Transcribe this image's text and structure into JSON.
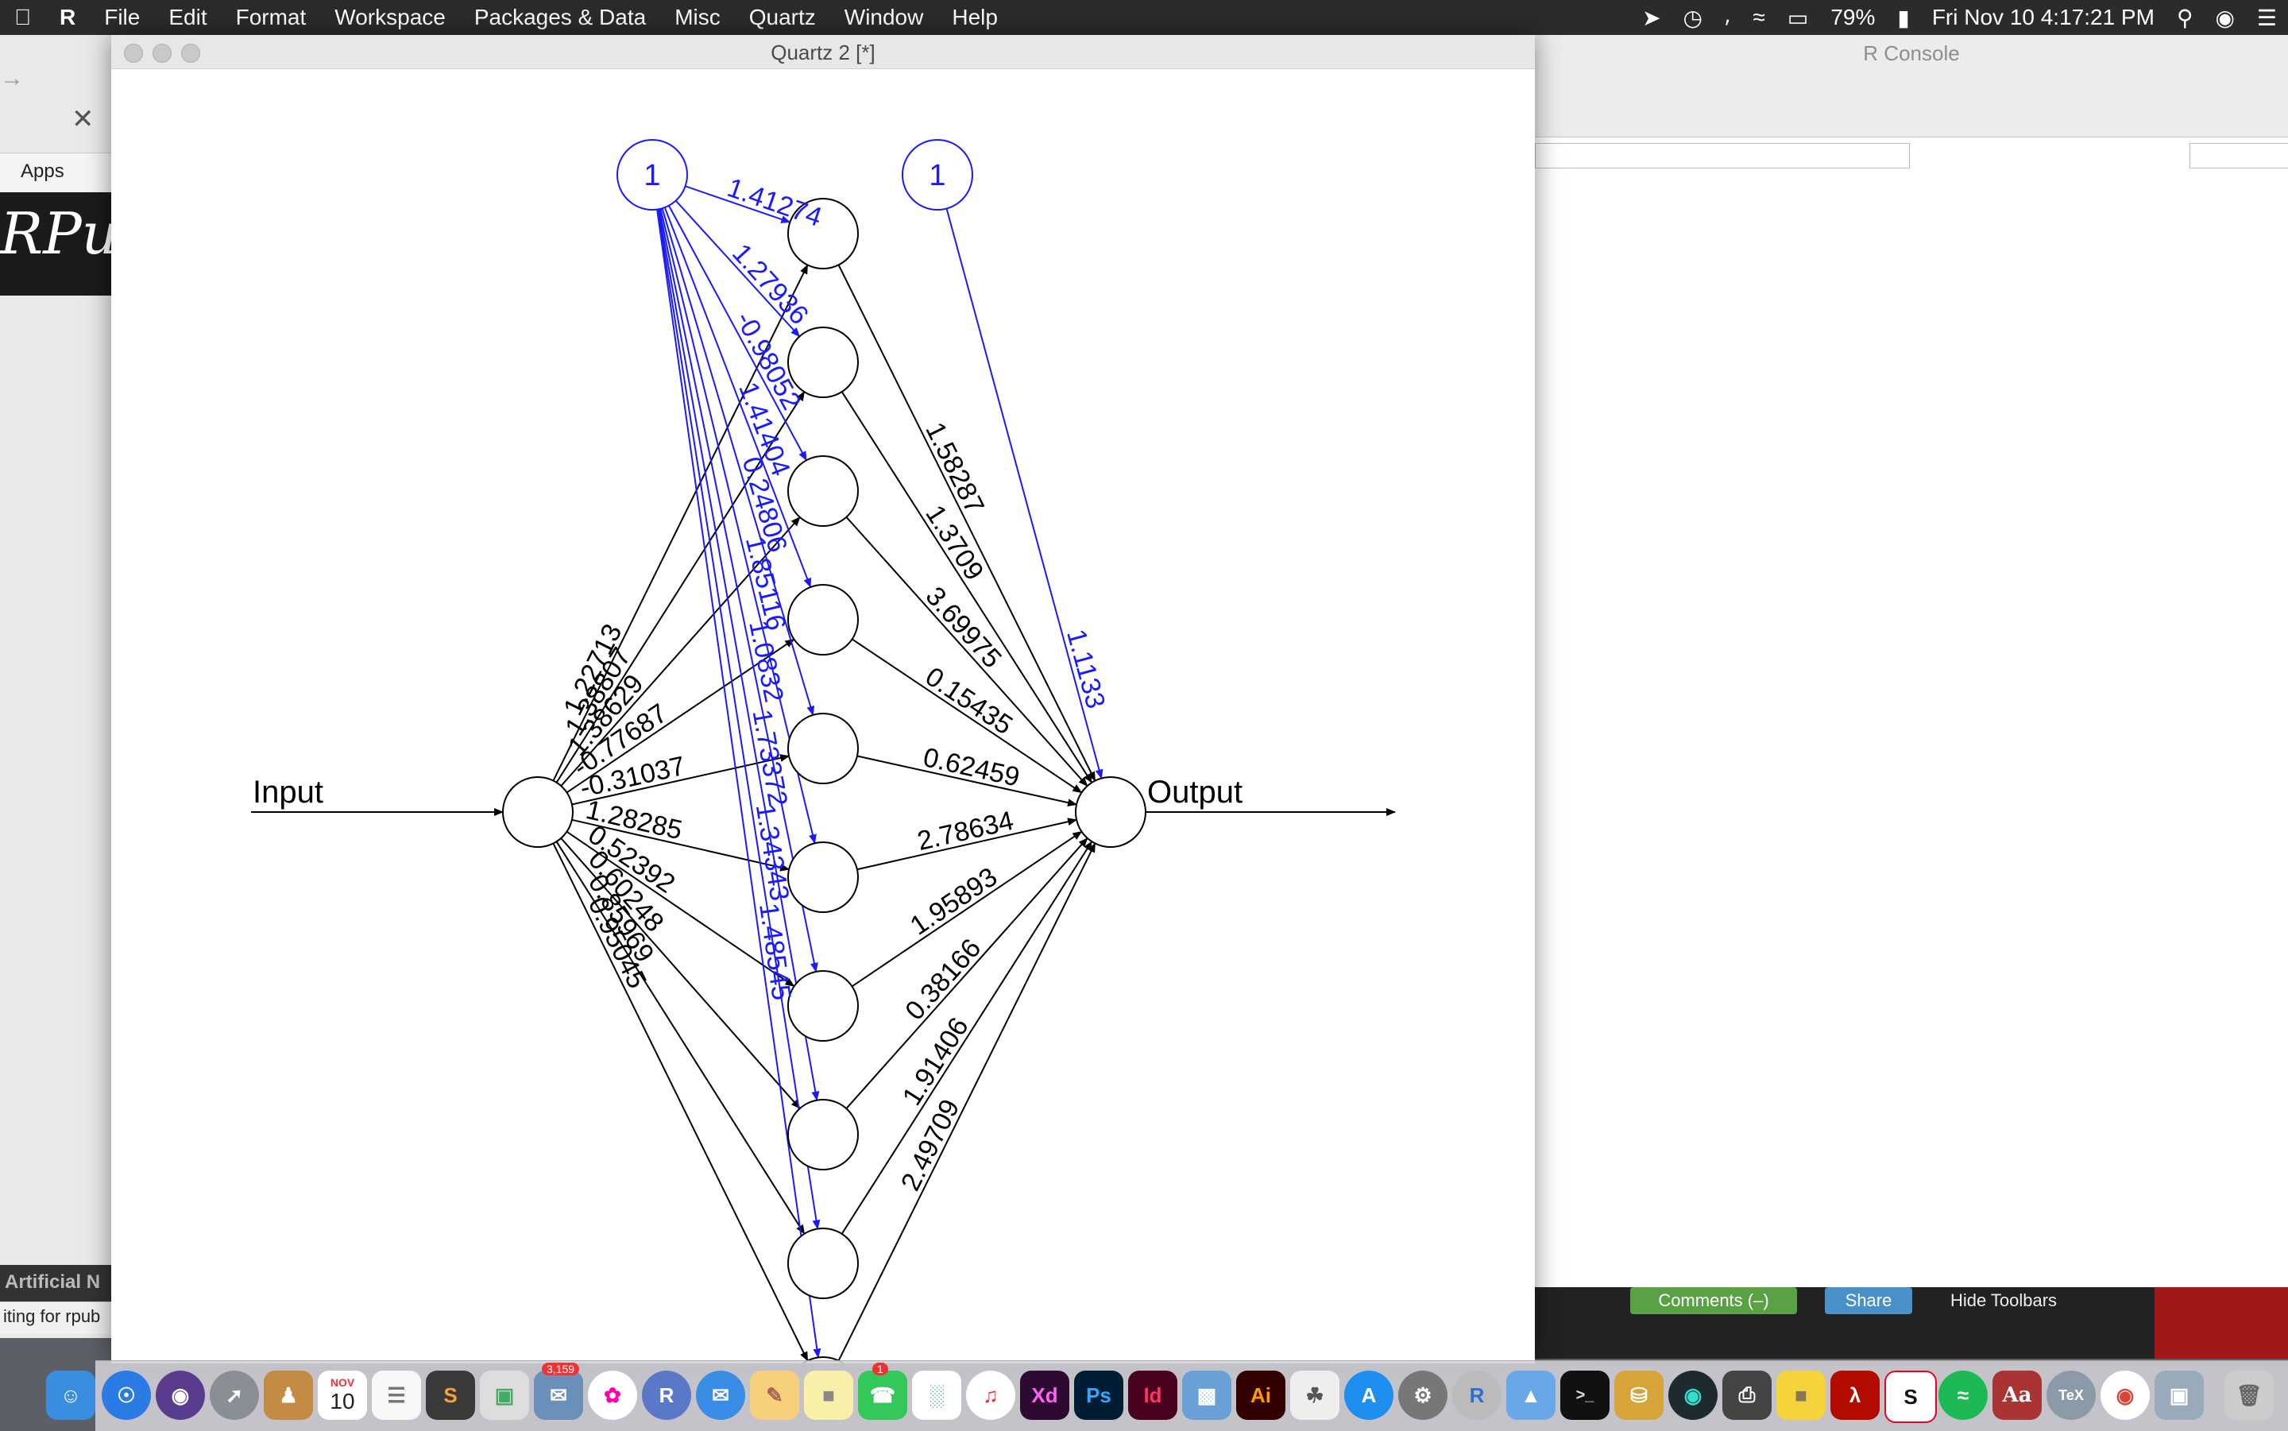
{
  "menubar": {
    "app_name": "R",
    "items": [
      "File",
      "Edit",
      "Format",
      "Workspace",
      "Packages & Data",
      "Misc",
      "Quartz",
      "Window",
      "Help"
    ],
    "battery": "79%",
    "clock": "Fri Nov 10  4:17:21 PM"
  },
  "browser": {
    "apps_label": "Apps",
    "rpubs_logo": "RPub",
    "tab_text": "Artificial N",
    "status_text": "iting for rpub"
  },
  "rconsole": {
    "title": "R Console",
    "buttons": [
      "Comments (–)",
      "Share",
      "Hide Toolbars"
    ]
  },
  "quartz": {
    "title": "Quartz 2 [*]"
  },
  "network": {
    "input_label": "Input",
    "output_label": "Output",
    "bias_labels": [
      "1",
      "1"
    ],
    "input_weights": [
      "1.22713",
      "1.38807",
      "1.38629",
      "-0.77687",
      "-0.31037",
      "1.28285",
      "0.52392",
      "0.60248",
      "0.85969",
      "0.95045"
    ],
    "bias_hidden_weights": [
      "1.41274",
      "1.27936",
      "-0.98052",
      "1.41404",
      "0.24806",
      "1.85116",
      "1.0832",
      "1.73372",
      "1.34343",
      "1.48545"
    ],
    "hidden_output_weights": [
      "1.58287",
      "1.3709",
      "3.69975",
      "0.15435",
      "0.62459",
      "2.78634",
      "1.95893",
      "0.38166",
      "1.91406",
      "2.49709"
    ],
    "bias_output_weight": "1.1133",
    "colors": {
      "black": "#000000",
      "blue": "#1a1aff"
    }
  },
  "dock": {
    "calendar_month": "NOV",
    "calendar_day": "10",
    "badge_mail": "3,159",
    "badge_facetime": "1",
    "xd": "Xd",
    "ps": "Ps",
    "id": "Id",
    "ai": "Ai",
    "aa": "Aa",
    "tex": "TeX",
    "s": "S"
  }
}
